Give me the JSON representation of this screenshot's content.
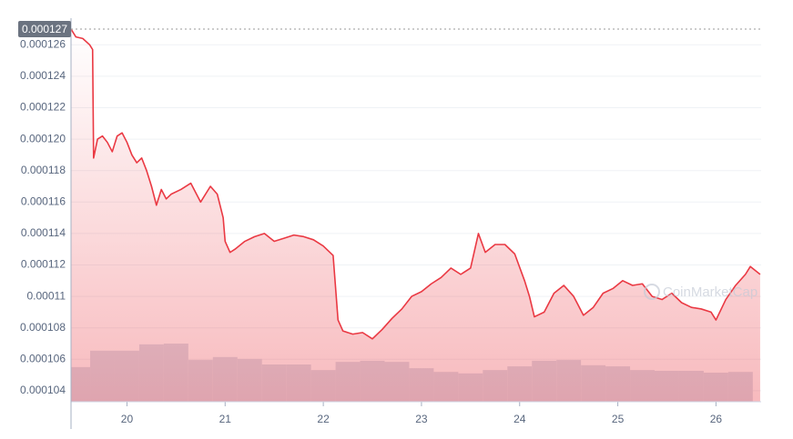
{
  "chart_data": {
    "type": "line",
    "xlim": [
      19.43,
      26.46
    ],
    "xticks": [
      20,
      21,
      22,
      23,
      24,
      25,
      26
    ],
    "ylim": [
      0.0001033,
      0.000127
    ],
    "yticks": [
      0.000104,
      0.000106,
      0.000108,
      0.00011,
      0.000112,
      0.000114,
      0.000116,
      0.000118,
      {
        "value": 0.00012,
        "label": "0.000120"
      },
      0.000122,
      0.000124,
      0.000126
    ],
    "y2lim": [
      0,
      100
    ],
    "grid": true,
    "top_marker": 0.000127,
    "watermark": "CoinMarketCap",
    "series": [
      {
        "color": "#ea3943",
        "x": [
          19.43,
          19.48,
          19.55,
          19.62,
          19.65,
          19.66,
          19.7,
          19.75,
          19.8,
          19.85,
          19.9,
          19.95,
          20,
          20.05,
          20.1,
          20.15,
          20.2,
          20.25,
          20.3,
          20.35,
          20.4,
          20.45,
          20.55,
          20.65,
          20.75,
          20.85,
          20.92,
          20.98,
          21,
          21.05,
          21.1,
          21.2,
          21.3,
          21.4,
          21.5,
          21.6,
          21.7,
          21.8,
          21.9,
          22,
          22.1,
          22.15,
          22.2,
          22.3,
          22.4,
          22.5,
          22.6,
          22.7,
          22.8,
          22.9,
          23,
          23.1,
          23.2,
          23.3,
          23.4,
          23.5,
          23.58,
          23.65,
          23.75,
          23.85,
          23.95,
          24.05,
          24.1,
          24.15,
          24.25,
          24.35,
          24.45,
          24.55,
          24.65,
          24.75,
          24.85,
          24.95,
          25.05,
          25.15,
          25.25,
          25.35,
          25.45,
          25.55,
          25.65,
          25.75,
          25.85,
          25.95,
          26,
          26.1,
          26.2,
          26.3,
          26.35,
          26.45
        ],
        "values": [
          0.000127,
          0.0001265,
          0.0001264,
          0.000126,
          0.0001257,
          0.0001188,
          0.00012,
          0.0001202,
          0.0001198,
          0.0001192,
          0.0001202,
          0.0001204,
          0.0001198,
          0.000119,
          0.0001185,
          0.0001188,
          0.000118,
          0.000117,
          0.0001158,
          0.0001168,
          0.0001162,
          0.0001165,
          0.0001168,
          0.0001172,
          0.000116,
          0.000117,
          0.0001165,
          0.000115,
          0.0001135,
          0.0001128,
          0.000113,
          0.0001135,
          0.0001138,
          0.000114,
          0.0001135,
          0.0001137,
          0.0001139,
          0.0001138,
          0.0001136,
          0.0001132,
          0.0001126,
          0.0001085,
          0.0001078,
          0.0001076,
          0.0001077,
          0.0001073,
          0.0001079,
          0.0001086,
          0.0001092,
          0.00011,
          0.0001103,
          0.0001108,
          0.0001112,
          0.0001118,
          0.0001114,
          0.0001118,
          0.000114,
          0.0001128,
          0.0001133,
          0.0001133,
          0.0001127,
          0.000111,
          0.00011,
          0.0001087,
          0.000109,
          0.0001102,
          0.0001107,
          0.00011,
          0.0001088,
          0.0001093,
          0.0001102,
          0.0001105,
          0.000111,
          0.0001107,
          0.0001108,
          0.00011,
          0.0001098,
          0.0001102,
          0.0001096,
          0.0001093,
          0.0001092,
          0.000109,
          0.0001085,
          0.0001098,
          0.0001107,
          0.0001114,
          0.0001119,
          0.0001114
        ]
      },
      {
        "color": "#d9dee9",
        "axis": "y2",
        "x": [
          19.5,
          19.75,
          20,
          20.25,
          20.5,
          20.75,
          21,
          21.25,
          21.5,
          21.75,
          22,
          22.25,
          22.5,
          22.75,
          23,
          23.25,
          23.5,
          23.75,
          24,
          24.25,
          24.5,
          24.75,
          25,
          25.25,
          25.5,
          25.75,
          26,
          26.25
        ],
        "values": [
          9.3,
          13.7,
          13.7,
          15.4,
          15.6,
          11.2,
          12,
          11.5,
          10,
          10,
          8.5,
          10.7,
          11,
          10.7,
          9,
          8,
          7.6,
          8.5,
          9.5,
          11,
          11.2,
          9.8,
          9.5,
          8.5,
          8.3,
          8.3,
          7.8,
          8
        ]
      }
    ]
  }
}
